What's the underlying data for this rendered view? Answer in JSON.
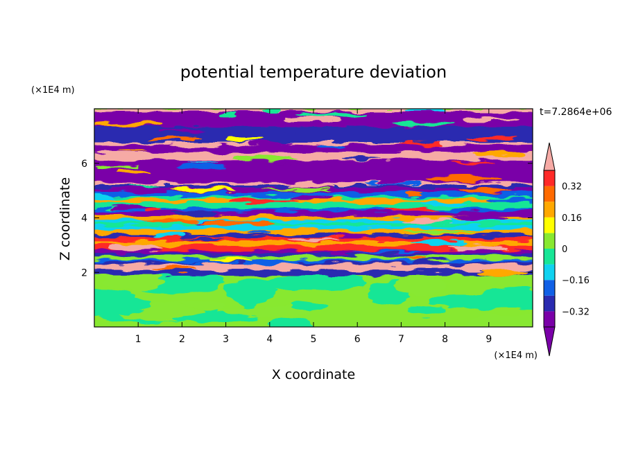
{
  "chart_data": {
    "type": "heatmap",
    "title": "potential temperature deviation",
    "xlabel": "X coordinate",
    "ylabel": "Z coordinate",
    "x_unit": "(×1E4 m)",
    "y_unit": "(×1E4 m)",
    "time_label": "t=7.2864e+06",
    "xlim": [
      0,
      10
    ],
    "ylim": [
      0,
      8
    ],
    "x_ticks": [
      1,
      2,
      3,
      4,
      5,
      6,
      7,
      8,
      9
    ],
    "y_ticks": [
      2,
      4,
      6
    ],
    "y_tick_labels": [
      "2",
      "4",
      "6"
    ],
    "x_tick_labels": [
      "1",
      "2",
      "3",
      "4",
      "5",
      "6",
      "7",
      "8",
      "9"
    ],
    "colorbar": {
      "labels": [
        "0.32",
        "0.16",
        "0",
        "−0.16",
        "−0.32"
      ],
      "label_levels": [
        0.32,
        0.16,
        0,
        -0.16,
        -0.32
      ],
      "levels": [
        -0.4,
        -0.32,
        -0.24,
        -0.16,
        -0.08,
        0,
        0.08,
        0.16,
        0.24,
        0.32,
        0.4
      ],
      "colors": [
        "#7a00a8",
        "#2a2bb0",
        "#1060e6",
        "#10d2f0",
        "#18e696",
        "#88e830",
        "#ffff00",
        "#ffa800",
        "#ff6a00",
        "#ff2a28",
        "#f6aaa5"
      ],
      "extend": "both"
    },
    "layers": {
      "stratified_top": "alternating pink/purple bands",
      "mixed_layer": "bands of all colors",
      "lower_layer": "green and yellow-green"
    }
  }
}
